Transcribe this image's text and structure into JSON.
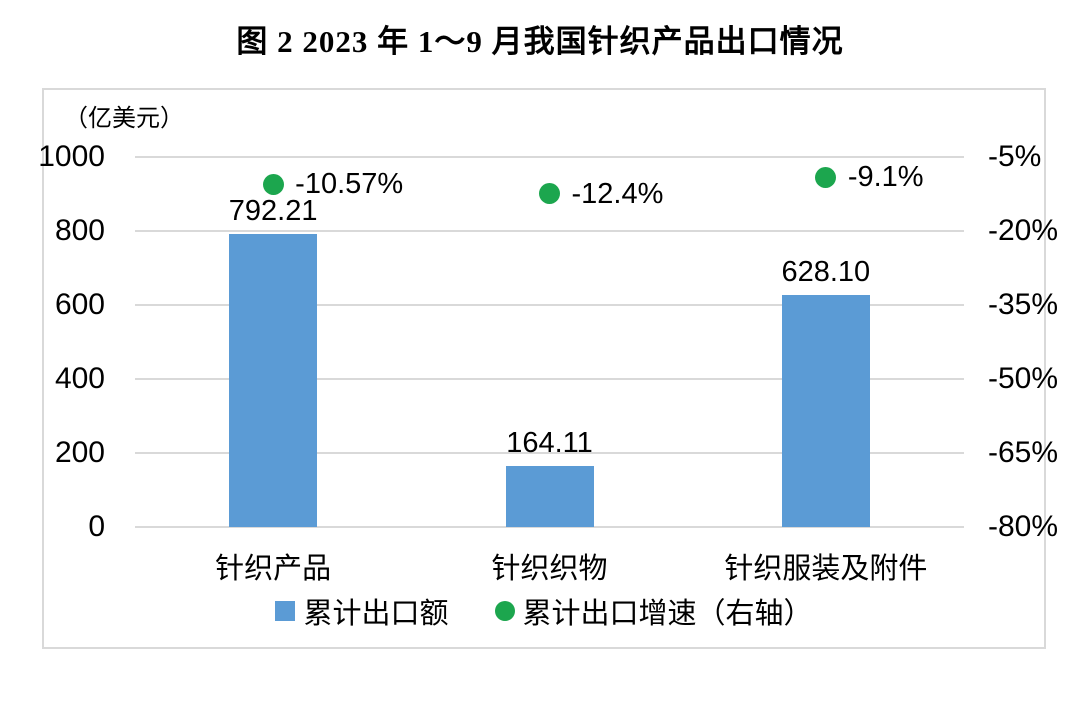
{
  "title": "图 2  2023 年 1～9 月我国针织产品出口情况",
  "chart_data": {
    "type": "bar",
    "subtype": "combo-bar-and-scatter-dual-axis",
    "title": "图 2  2023 年 1～9 月我国针织产品出口情况",
    "unit_label": "（亿美元）",
    "categories": [
      "针织产品",
      "针织织物",
      "针织服装及附件"
    ],
    "series": [
      {
        "name": "累计出口额",
        "type": "bar",
        "axis": "left",
        "color": "#5B9BD5",
        "values": [
          792.21,
          164.11,
          628.1
        ],
        "data_labels": [
          "792.21",
          "164.11",
          "628.10"
        ]
      },
      {
        "name": "累计出口增速（右轴）",
        "type": "scatter",
        "axis": "right",
        "color": "#1CA64E",
        "values": [
          -10.57,
          -12.4,
          -9.1
        ],
        "data_labels": [
          "-10.57%",
          "-12.4%",
          "-9.1%"
        ]
      }
    ],
    "left_axis": {
      "min": 0,
      "max": 1000,
      "step": 200,
      "tick_labels": [
        "1000",
        "800",
        "600",
        "400",
        "200",
        "0"
      ]
    },
    "right_axis": {
      "min": -80,
      "max": -5,
      "step": 15,
      "tick_labels": [
        "-5%",
        "-20%",
        "-35%",
        "-50%",
        "-65%",
        "-80%"
      ]
    },
    "grid": true,
    "gridline_color": "#D9D9D9",
    "frame_border_color": "#D9D9D9",
    "legend_position": "bottom",
    "legend": [
      {
        "label": "累计出口额",
        "marker": "square",
        "color": "#5B9BD5"
      },
      {
        "label": "累计出口增速（右轴）",
        "marker": "circle",
        "color": "#1CA64E"
      }
    ]
  }
}
